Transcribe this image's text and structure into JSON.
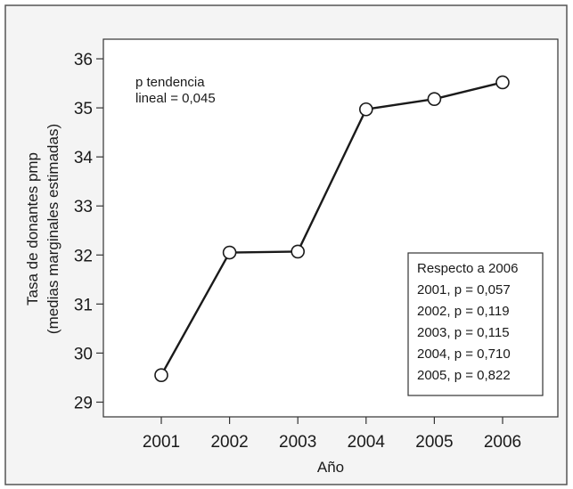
{
  "chart_data": {
    "type": "line",
    "xlabel": "Año",
    "ylabel_lines": [
      "Tasa de donantes pmp",
      "(medias marginales estimadas)"
    ],
    "categories": [
      "2001",
      "2002",
      "2003",
      "2004",
      "2005",
      "2006"
    ],
    "yticks": [
      "29",
      "30",
      "31",
      "32",
      "33",
      "34",
      "35",
      "36"
    ],
    "ylim": [
      28.7,
      36.4
    ],
    "series": [
      {
        "values": [
          29.55,
          32.05,
          32.07,
          34.97,
          35.18,
          35.52
        ]
      }
    ],
    "annotation_lines": [
      "p tendencia",
      "lineal = 0,045"
    ],
    "legend_box": {
      "title": "Respecto a 2006",
      "lines": [
        "2001, p = 0,057",
        "2002, p = 0,119",
        "2003, p = 0,115",
        "2004, p = 0,710",
        "2005, p = 0,822"
      ]
    },
    "grid": false,
    "colors": {
      "panel_bg": "#f4f4f4",
      "plot_bg": "#ffffff",
      "line": "#1a1a1a",
      "marker_fill": "#ffffff"
    }
  }
}
